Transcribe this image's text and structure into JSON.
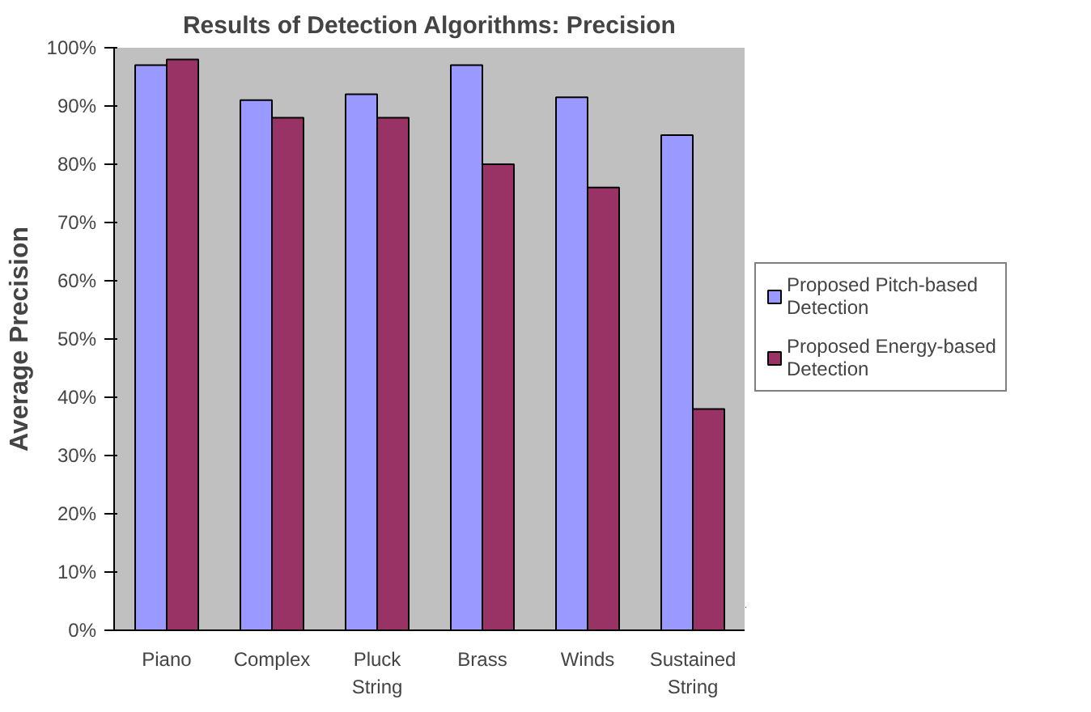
{
  "chart_data": {
    "type": "bar",
    "title": "Results of Detection Algorithms: Precision",
    "ylabel": "Average Precision",
    "categories": [
      "Piano",
      "Complex",
      "Pluck String",
      "Brass",
      "Winds",
      "Sustained String"
    ],
    "series": [
      {
        "name": "Proposed Pitch-based Detection",
        "color": "#9999ff",
        "values": [
          97,
          91,
          92,
          97,
          91.5,
          85
        ]
      },
      {
        "name": "Proposed Energy-based Detection",
        "color": "#993366",
        "values": [
          98,
          88,
          88,
          80,
          76,
          38
        ]
      }
    ],
    "ylim": [
      0,
      100
    ],
    "yticks": [
      {
        "value": 0,
        "label": "0%"
      },
      {
        "value": 10,
        "label": "10%"
      },
      {
        "value": 20,
        "label": "20%"
      },
      {
        "value": 30,
        "label": "30%"
      },
      {
        "value": 40,
        "label": "40%"
      },
      {
        "value": 50,
        "label": "50%"
      },
      {
        "value": 60,
        "label": "60%"
      },
      {
        "value": 70,
        "label": "70%"
      },
      {
        "value": 80,
        "label": "80%"
      },
      {
        "value": 90,
        "label": "90%"
      },
      {
        "value": 100,
        "label": "100%"
      }
    ],
    "grid": false,
    "legend": "right"
  }
}
